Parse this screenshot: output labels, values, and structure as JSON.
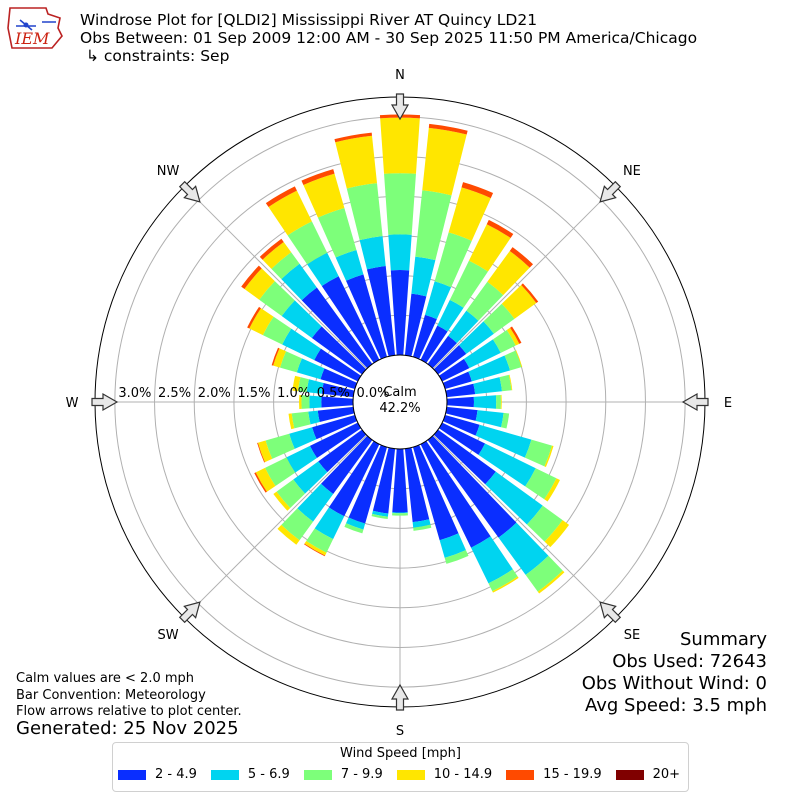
{
  "header": {
    "title": "Windrose Plot for [QLDI2] Mississippi River  AT Quincy LD21",
    "subtitle": "Obs Between: 01 Sep 2009 12:00 AM - 30 Sep 2025 11:50 PM America/Chicago",
    "constraints": "↳ constraints: Sep",
    "logo_text": "IEM"
  },
  "notes": {
    "calm": "Calm values are < 2.0 mph",
    "convention": "Bar Convention: Meteorology",
    "flow": "Flow arrows relative to plot center.",
    "generated": "Generated: 25 Nov 2025"
  },
  "summary": {
    "heading": "Summary",
    "obs_used": "Obs Used: 72643",
    "obs_without_wind": "Obs Without Wind: 0",
    "avg_speed": "Avg Speed: 3.5 mph"
  },
  "chart_data": {
    "type": "windrose",
    "center_label": "Calm",
    "calm_percent": "42.2%",
    "directions": [
      "N",
      "NE",
      "E",
      "SE",
      "S",
      "SW",
      "W",
      "NW"
    ],
    "radial_ticks": [
      "0.0%",
      "0.5%",
      "1.0%",
      "1.5%",
      "2.0%",
      "2.5%",
      "3.0%"
    ],
    "rmax": 3.25,
    "legend_title": "Wind Speed [mph]",
    "bins": [
      {
        "label": "2 - 4.9",
        "color": "#0a2eff"
      },
      {
        "label": "5 - 6.9",
        "color": "#00d4f0"
      },
      {
        "label": "7 - 9.9",
        "color": "#7dff7a"
      },
      {
        "label": "10 - 14.9",
        "color": "#ffe600"
      },
      {
        "label": "15 - 19.9",
        "color": "#ff4a00"
      },
      {
        "label": "20+",
        "color": "#800000"
      }
    ],
    "sectors": [
      {
        "dir": 0,
        "cum": [
          1.07,
          1.52,
          2.29,
          2.99,
          3.03,
          3.03
        ]
      },
      {
        "dir": 10,
        "cum": [
          0.78,
          1.25,
          2.09,
          2.88,
          2.93,
          2.93
        ]
      },
      {
        "dir": 20,
        "cum": [
          0.55,
          0.99,
          1.63,
          2.22,
          2.29,
          2.29
        ]
      },
      {
        "dir": 30,
        "cum": [
          0.48,
          0.84,
          1.39,
          1.9,
          1.96,
          1.96
        ]
      },
      {
        "dir": 40,
        "cum": [
          0.44,
          0.83,
          1.28,
          1.76,
          1.82,
          1.82
        ]
      },
      {
        "dir": 50,
        "cum": [
          0.44,
          0.87,
          1.19,
          1.53,
          1.56,
          1.56
        ]
      },
      {
        "dir": 60,
        "cum": [
          0.38,
          0.82,
          1.03,
          1.08,
          1.11,
          1.11
        ]
      },
      {
        "dir": 70,
        "cum": [
          0.35,
          0.85,
          1.0,
          1.01,
          1.01,
          1.01
        ]
      },
      {
        "dir": 80,
        "cum": [
          0.36,
          0.7,
          0.82,
          0.83,
          0.83,
          0.83
        ]
      },
      {
        "dir": 90,
        "cum": [
          0.34,
          0.62,
          0.68,
          0.69,
          0.69,
          0.69
        ]
      },
      {
        "dir": 100,
        "cum": [
          0.39,
          0.72,
          0.79,
          0.79,
          0.79,
          0.79
        ]
      },
      {
        "dir": 110,
        "cum": [
          0.45,
          1.13,
          1.4,
          1.42,
          1.42,
          1.42
        ]
      },
      {
        "dir": 120,
        "cum": [
          0.6,
          1.31,
          1.6,
          1.65,
          1.65,
          1.65
        ]
      },
      {
        "dir": 130,
        "cum": [
          0.9,
          1.63,
          1.94,
          2.04,
          2.04,
          2.04
        ]
      },
      {
        "dir": 140,
        "cum": [
          1.52,
          2.1,
          2.36,
          2.39,
          2.39,
          2.39
        ]
      },
      {
        "dir": 150,
        "cum": [
          1.45,
          1.95,
          2.06,
          2.08,
          2.08,
          2.08
        ]
      },
      {
        "dir": 160,
        "cum": [
          1.22,
          1.45,
          1.53,
          1.53,
          1.53,
          1.53
        ]
      },
      {
        "dir": 170,
        "cum": [
          0.93,
          1.0,
          1.04,
          1.04,
          1.04,
          1.04
        ]
      },
      {
        "dir": 180,
        "cum": [
          0.8,
          0.81,
          0.84,
          0.84,
          0.84,
          0.84
        ]
      },
      {
        "dir": 190,
        "cum": [
          0.82,
          0.86,
          0.89,
          0.89,
          0.89,
          0.89
        ]
      },
      {
        "dir": 200,
        "cum": [
          1.0,
          1.08,
          1.13,
          1.13,
          1.13,
          1.13
        ]
      },
      {
        "dir": 210,
        "cum": [
          1.01,
          1.33,
          1.52,
          1.56,
          1.57,
          1.57
        ]
      },
      {
        "dir": 220,
        "cum": [
          0.84,
          1.27,
          1.56,
          1.63,
          1.63,
          1.63
        ]
      },
      {
        "dir": 230,
        "cum": [
          0.68,
          1.07,
          1.33,
          1.38,
          1.38,
          1.38
        ]
      },
      {
        "dir": 240,
        "cum": [
          0.67,
          1.0,
          1.3,
          1.43,
          1.45,
          1.45
        ]
      },
      {
        "dir": 250,
        "cum": [
          0.56,
          0.86,
          1.17,
          1.27,
          1.28,
          1.28
        ]
      },
      {
        "dir": 260,
        "cum": [
          0.45,
          0.57,
          0.78,
          0.82,
          0.82,
          0.82
        ]
      },
      {
        "dir": 270,
        "cum": [
          0.4,
          0.55,
          0.65,
          0.68,
          0.68,
          0.68
        ]
      },
      {
        "dir": 280,
        "cum": [
          0.4,
          0.59,
          0.7,
          0.77,
          0.77,
          0.77
        ]
      },
      {
        "dir": 290,
        "cum": [
          0.45,
          0.76,
          0.98,
          1.07,
          1.09,
          1.09
        ]
      },
      {
        "dir": 300,
        "cum": [
          0.61,
          1.06,
          1.33,
          1.52,
          1.55,
          1.55
        ]
      },
      {
        "dir": 310,
        "cum": [
          0.78,
          1.25,
          1.6,
          1.83,
          1.88,
          1.88
        ]
      },
      {
        "dir": 320,
        "cum": [
          1.19,
          1.56,
          1.74,
          1.9,
          1.95,
          1.95
        ]
      },
      {
        "dir": 330,
        "cum": [
          1.17,
          1.5,
          1.94,
          2.37,
          2.43,
          2.43
        ]
      },
      {
        "dir": 340,
        "cum": [
          1.08,
          1.4,
          1.95,
          2.4,
          2.46,
          2.46
        ]
      },
      {
        "dir": 350,
        "cum": [
          1.13,
          1.51,
          2.18,
          2.78,
          2.82,
          2.82
        ]
      }
    ]
  }
}
